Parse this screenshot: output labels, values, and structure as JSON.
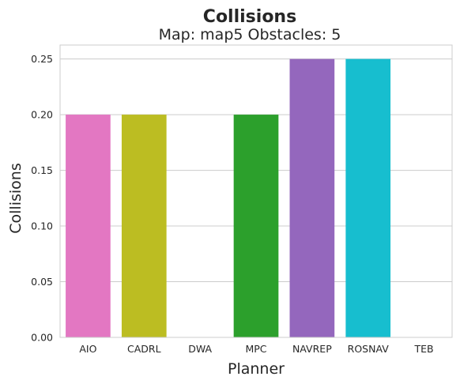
{
  "chart_data": {
    "type": "bar",
    "title": "Collisions",
    "subtitle": "Map: map5 Obstacles: 5",
    "xlabel": "Planner",
    "ylabel": "Collisions",
    "categories": [
      "AIO",
      "CADRL",
      "DWA",
      "MPC",
      "NAVREP",
      "ROSNAV",
      "TEB"
    ],
    "values": [
      0.2,
      0.2,
      0.0,
      0.2,
      0.25,
      0.25,
      0.0
    ],
    "colors": [
      "#e377c2",
      "#bcbd22",
      "#7f7f7f",
      "#2ca02c",
      "#9467bd",
      "#17becf",
      "#1f77b4"
    ],
    "ylim": [
      0,
      0.2625
    ],
    "yticks": [
      "0.00",
      "0.05",
      "0.10",
      "0.15",
      "0.20",
      "0.25"
    ],
    "grid": true,
    "legend": "none"
  }
}
